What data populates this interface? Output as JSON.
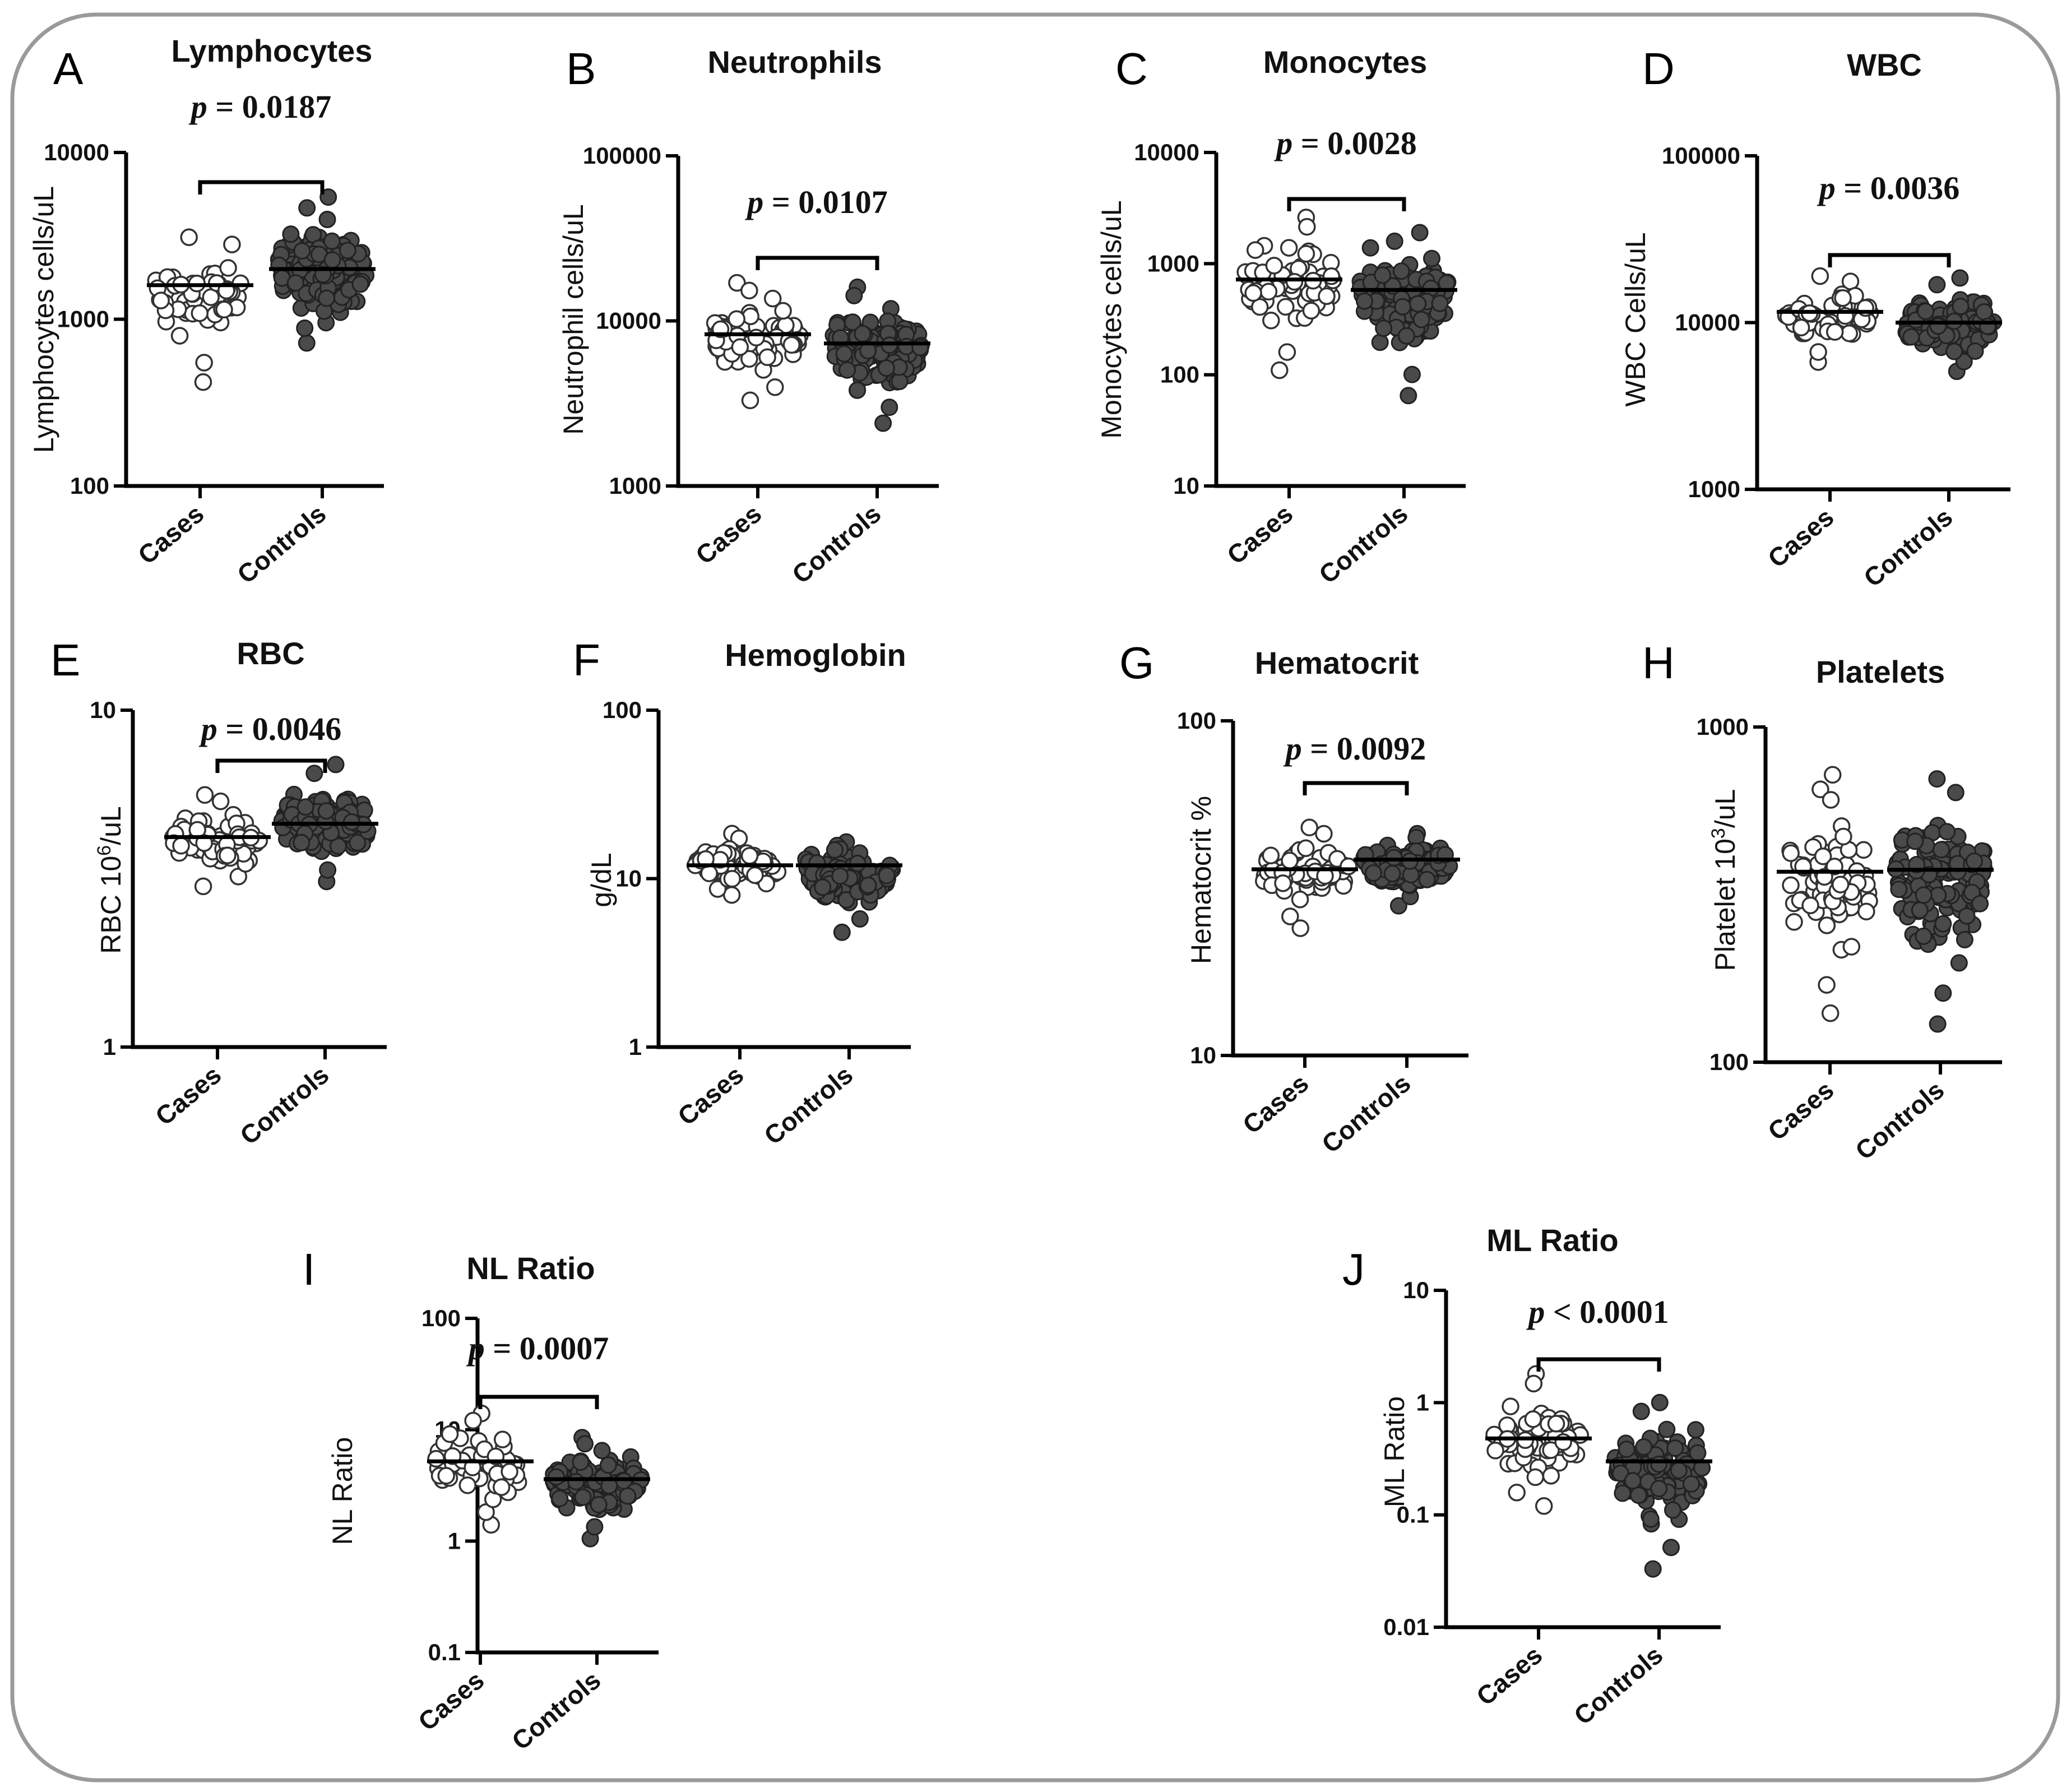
{
  "colors": {
    "cases_fill": "#ffffff",
    "controls_fill": "#4a4a4a",
    "frame": "#9a9a9a"
  },
  "chart_data": [
    {
      "type": "scatter",
      "letter": "A",
      "title": "Lymphocytes",
      "ylabel": "Lymphocytes cells/uL",
      "yscale": "log",
      "ylim": [
        100,
        10000
      ],
      "yticks": [
        "100",
        "1000",
        "10000"
      ],
      "categories": [
        "Cases",
        "Controls"
      ],
      "medians": [
        1600,
        2000
      ],
      "ranges": [
        [
          420,
          3100
        ],
        [
          720,
          5400
        ]
      ],
      "p_value": "0.0187",
      "p_sign": "=",
      "series": [
        {
          "name": "Cases"
        },
        {
          "name": "Controls"
        }
      ]
    },
    {
      "type": "scatter",
      "letter": "B",
      "title": "Neutrophils",
      "ylabel": "Neutrophil cells/uL",
      "yscale": "log",
      "ylim": [
        1000,
        100000
      ],
      "yticks": [
        "1000",
        "10000",
        "100000"
      ],
      "categories": [
        "Cases",
        "Controls"
      ],
      "medians": [
        8300,
        7300
      ],
      "ranges": [
        [
          3300,
          17000
        ],
        [
          2400,
          16000
        ]
      ],
      "p_value": "0.0107",
      "p_sign": "=",
      "series": [
        {
          "name": "Cases"
        },
        {
          "name": "Controls"
        }
      ]
    },
    {
      "type": "scatter",
      "letter": "C",
      "title": "Monocytes",
      "ylabel": "Monocytes cells/uL",
      "yscale": "log",
      "ylim": [
        10,
        10000
      ],
      "yticks": [
        "10",
        "100",
        "1000",
        "10000"
      ],
      "categories": [
        "Cases",
        "Controls"
      ],
      "medians": [
        720,
        580
      ],
      "ranges": [
        [
          110,
          2600
        ],
        [
          65,
          1900
        ]
      ],
      "p_value": "0.0028",
      "p_sign": "=",
      "series": [
        {
          "name": "Cases"
        },
        {
          "name": "Controls"
        }
      ]
    },
    {
      "type": "scatter",
      "letter": "D",
      "title": "WBC",
      "ylabel": "WBC Cells/uL",
      "yscale": "log",
      "ylim": [
        1000,
        100000
      ],
      "yticks": [
        "1000",
        "10000",
        "100000"
      ],
      "categories": [
        "Cases",
        "Controls"
      ],
      "medians": [
        11600,
        10000
      ],
      "ranges": [
        [
          5800,
          19000
        ],
        [
          5100,
          18500
        ]
      ],
      "p_value": "0.0036",
      "p_sign": "=",
      "series": [
        {
          "name": "Cases"
        },
        {
          "name": "Controls"
        }
      ]
    },
    {
      "type": "scatter",
      "letter": "E",
      "title": "RBC",
      "ylabel_main": "RBC 10",
      "ylabel_sup": "6",
      "ylabel_tail": "/uL",
      "yscale": "log",
      "ylim": [
        1,
        10
      ],
      "yticks": [
        "1",
        "10"
      ],
      "categories": [
        "Cases",
        "Controls"
      ],
      "medians": [
        4.2,
        4.6
      ],
      "ranges": [
        [
          3.0,
          5.6
        ],
        [
          3.1,
          6.9
        ]
      ],
      "p_value": "0.0046",
      "p_sign": "=",
      "series": [
        {
          "name": "Cases"
        },
        {
          "name": "Controls"
        }
      ]
    },
    {
      "type": "scatter",
      "letter": "F",
      "title": "Hemoglobin",
      "ylabel": "g/dL",
      "yscale": "log",
      "ylim": [
        1,
        100
      ],
      "yticks": [
        "1",
        "10",
        "100"
      ],
      "categories": [
        "Cases",
        "Controls"
      ],
      "medians": [
        12.0,
        12.0
      ],
      "ranges": [
        [
          8.0,
          18.5
        ],
        [
          4.8,
          16.5
        ]
      ],
      "p_value": "",
      "p_sign": "",
      "series": [
        {
          "name": "Cases"
        },
        {
          "name": "Controls"
        }
      ]
    },
    {
      "type": "scatter",
      "letter": "G",
      "title": "Hematocrit",
      "ylabel": "Hematocrit %",
      "yscale": "log",
      "ylim": [
        10,
        100
      ],
      "yticks": [
        "10",
        "100"
      ],
      "categories": [
        "Cases",
        "Controls"
      ],
      "medians": [
        36,
        38.5
      ],
      "ranges": [
        [
          24,
          48
        ],
        [
          28,
          46
        ]
      ],
      "p_value": "0.0092",
      "p_sign": "=",
      "series": [
        {
          "name": "Cases"
        },
        {
          "name": "Controls"
        }
      ]
    },
    {
      "type": "scatter",
      "letter": "H",
      "title": "Platelets",
      "ylabel_main": "Platelet 10",
      "ylabel_sup": "3",
      "ylabel_tail": "/uL",
      "yscale": "log",
      "ylim": [
        100,
        1000
      ],
      "yticks": [
        "100",
        "1000"
      ],
      "categories": [
        "Cases",
        "Controls"
      ],
      "medians": [
        370,
        375
      ],
      "ranges": [
        [
          140,
          720
        ],
        [
          130,
          700
        ]
      ],
      "p_value": "",
      "p_sign": "",
      "series": [
        {
          "name": "Cases"
        },
        {
          "name": "Controls"
        }
      ]
    },
    {
      "type": "scatter",
      "letter": "I",
      "title": "NL Ratio",
      "ylabel": "NL Ratio",
      "yscale": "log",
      "ylim": [
        0.1,
        100
      ],
      "yticks": [
        "0.1",
        "1",
        "10",
        "100"
      ],
      "categories": [
        "Cases",
        "Controls"
      ],
      "medians": [
        5.2,
        3.6
      ],
      "ranges": [
        [
          1.4,
          14
        ],
        [
          1.05,
          8.5
        ]
      ],
      "p_value": "0.0007",
      "p_sign": "=",
      "series": [
        {
          "name": "Cases"
        },
        {
          "name": "Controls"
        }
      ]
    },
    {
      "type": "scatter",
      "letter": "J",
      "title": "ML Ratio",
      "ylabel": "ML Ratio",
      "yscale": "log",
      "ylim": [
        0.01,
        10
      ],
      "yticks": [
        "0.01",
        "0.1",
        "1",
        "10"
      ],
      "categories": [
        "Cases",
        "Controls"
      ],
      "medians": [
        0.48,
        0.3
      ],
      "ranges": [
        [
          0.12,
          1.8
        ],
        [
          0.033,
          1.0
        ]
      ],
      "p_value": "0.0001",
      "p_sign": "<",
      "series": [
        {
          "name": "Cases"
        },
        {
          "name": "Controls"
        }
      ]
    }
  ]
}
